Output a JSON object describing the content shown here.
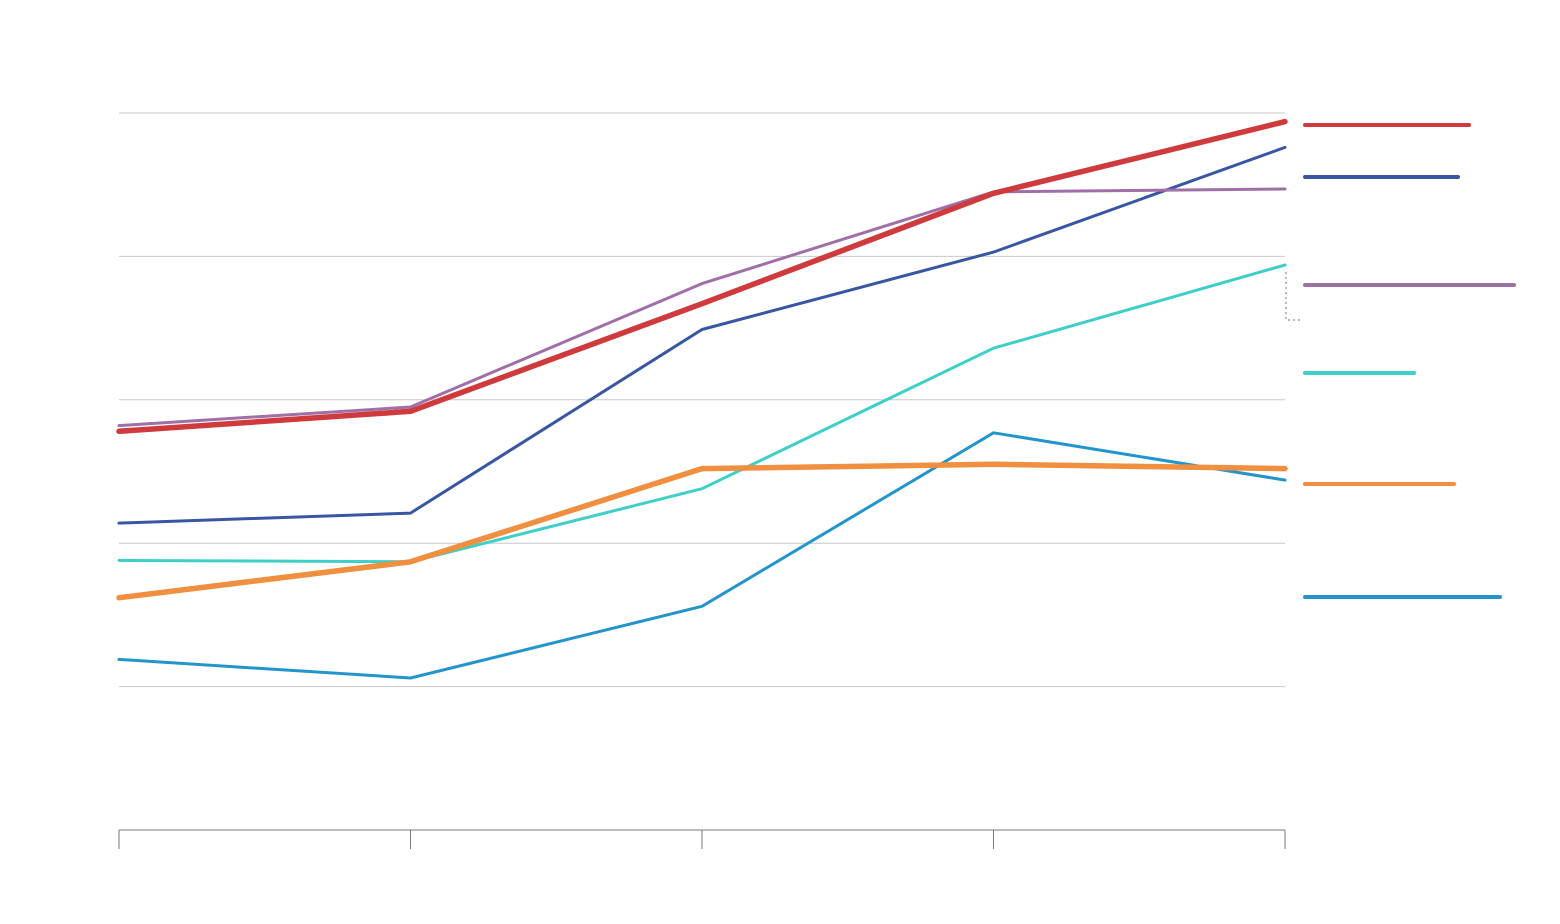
{
  "chart_data": {
    "type": "line",
    "title": "",
    "xlabel": "",
    "ylabel": "",
    "x": [
      0,
      1,
      2,
      3,
      4
    ],
    "xlim": [
      0,
      4
    ],
    "ylim": [
      0,
      5
    ],
    "y_gridlines": [
      1,
      2,
      3,
      4
    ],
    "grid": true,
    "legend_position": "right",
    "series": [
      {
        "color": "#cf3a3c",
        "width": 5.5,
        "values": [
          2.78,
          2.92,
          3.67,
          4.44,
          4.94
        ]
      },
      {
        "color": "#3856a3",
        "width": 3,
        "values": [
          2.14,
          2.21,
          3.49,
          4.03,
          4.76
        ]
      },
      {
        "color": "#a06fa8",
        "width": 3,
        "values": [
          2.82,
          2.95,
          3.81,
          4.45,
          4.47
        ]
      },
      {
        "color": "#3ecfc8",
        "width": 3,
        "values": [
          1.88,
          1.87,
          2.38,
          3.36,
          3.94
        ]
      },
      {
        "color": "#f08f3f",
        "width": 5.5,
        "values": [
          1.62,
          1.87,
          2.52,
          2.55,
          2.52
        ]
      },
      {
        "color": "#2394cc",
        "width": 3,
        "values": [
          1.19,
          1.06,
          1.56,
          2.77,
          2.44
        ]
      }
    ],
    "legend": [
      {
        "color": "#cf3a3c",
        "width": 4,
        "line_length": 164
      },
      {
        "color": "#3856a3",
        "width": 4,
        "line_length": 153
      },
      {
        "color": "#a06fa8",
        "width": 4,
        "line_length": 209
      },
      {
        "color": "#3ecfc8",
        "width": 4,
        "line_length": 109
      },
      {
        "color": "#f08f3f",
        "width": 4,
        "line_length": 149
      },
      {
        "color": "#2394cc",
        "width": 4,
        "line_length": 195
      }
    ]
  }
}
